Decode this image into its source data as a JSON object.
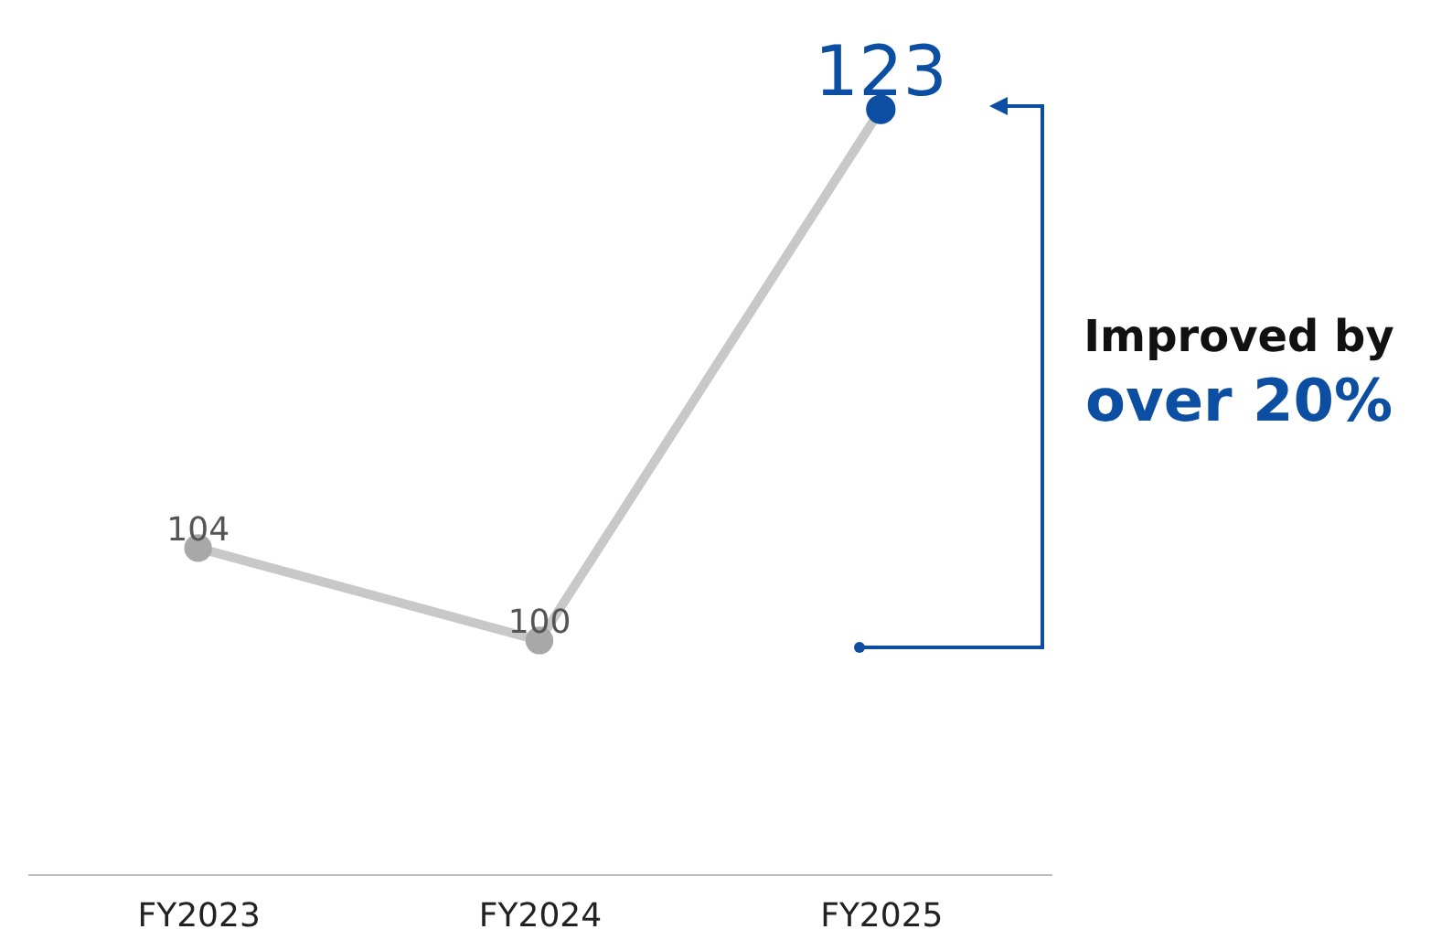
{
  "chart_data": {
    "type": "line",
    "categories": [
      "FY2023",
      "FY2024",
      "FY2025"
    ],
    "series": [
      {
        "color": "#c8c8c8",
        "values": [
          104,
          100,
          123
        ]
      }
    ],
    "colors": [
      "#a8a8a8",
      "#a8a8a8",
      "#0b4ea2"
    ],
    "data_labels": true,
    "marker": "circle",
    "grid": false,
    "annotations": [
      "Improved by",
      "over 20%"
    ]
  }
}
